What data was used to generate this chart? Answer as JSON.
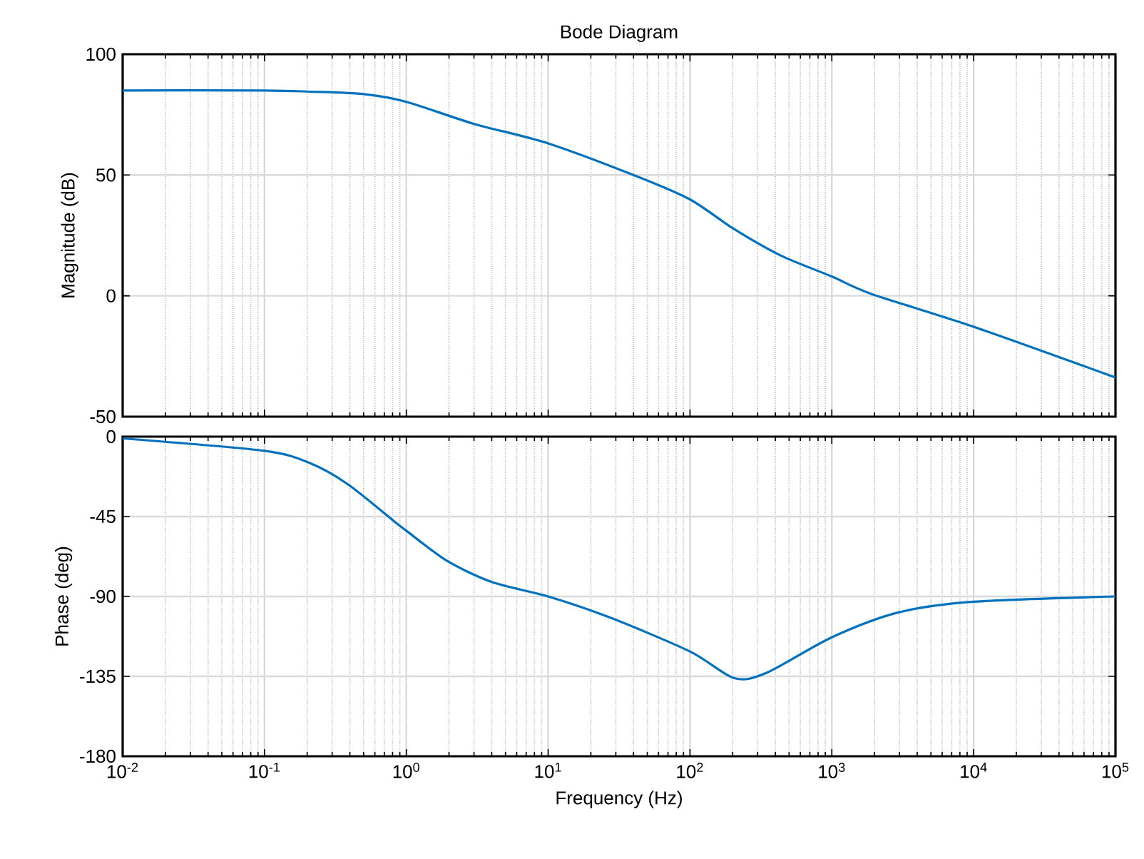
{
  "chart_data": [
    {
      "type": "line",
      "title": "Bode Diagram",
      "ylabel": "Magnitude (dB)",
      "log": "x",
      "grid": true,
      "marker": "none",
      "line_style": "solid",
      "tick_labels": "y",
      "xlim": [
        0.01,
        100000
      ],
      "xticks": [
        0.01,
        0.1,
        1,
        10,
        100,
        1000,
        10000,
        100000
      ],
      "ylim": [
        -50,
        100
      ],
      "yticks": [
        -50,
        0,
        50,
        100
      ],
      "series": [
        {
          "color": "#0072bd",
          "x": [
            0.01,
            0.1,
            0.21,
            0.5,
            1,
            2.95,
            10,
            42,
            100,
            205,
            436,
            1000,
            1900,
            10000,
            100000
          ],
          "values": [
            85,
            85,
            84.5,
            83.5,
            80.3,
            71.3,
            63.1,
            49.5,
            39.9,
            27.6,
            16.7,
            8.0,
            0.8,
            -12.8,
            -33.8
          ]
        }
      ]
    },
    {
      "type": "line",
      "xlabel": "Frequency  (Hz)",
      "ylabel": "Phase (deg)",
      "log": "x",
      "grid": true,
      "marker": "none",
      "line_style": "solid",
      "xlim": [
        0.01,
        100000
      ],
      "xticks": [
        {
          "value": 0.01,
          "label": "10$^{-2}$"
        },
        {
          "value": 0.1,
          "label": "10$^{-1}$"
        },
        {
          "value": 1,
          "label": "10$^{0}$"
        },
        {
          "value": 10,
          "label": "10$^{1}$"
        },
        {
          "value": 100,
          "label": "10$^{2}$"
        },
        {
          "value": 1000,
          "label": "10$^{3}$"
        },
        {
          "value": 10000,
          "label": "10$^{4}$"
        },
        {
          "value": 100000,
          "label": "10$^{5}$"
        }
      ],
      "ylim": [
        -180,
        0
      ],
      "yticks": [
        -180,
        -135,
        -90,
        -45,
        0
      ],
      "series": [
        {
          "color": "#0072bd",
          "x": [
            0.01,
            0.1,
            0.21,
            0.39,
            0.83,
            1,
            1.94,
            4.04,
            10,
            27.5,
            100,
            205,
            347,
            1000,
            2950,
            10000,
            100000
          ],
          "values": [
            -1,
            -8,
            -15,
            -27,
            -48,
            -53,
            -70,
            -82,
            -90,
            -102,
            -121,
            -136,
            -133,
            -113,
            -99,
            -93,
            -90
          ]
        }
      ]
    }
  ]
}
